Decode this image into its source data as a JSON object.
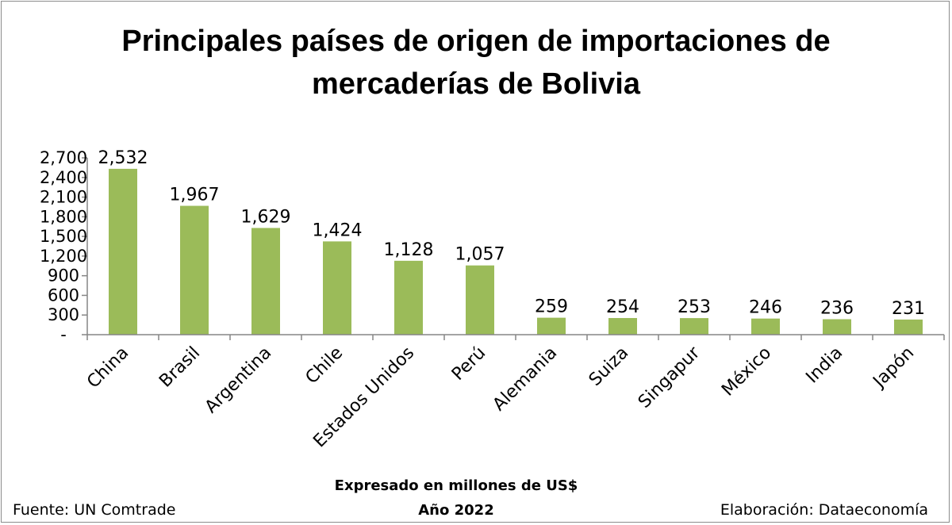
{
  "chart_data": {
    "type": "bar",
    "title_lines": [
      "Principales países de origen de importaciones de",
      "mercaderías de Bolivia"
    ],
    "categories": [
      "China",
      "Brasil",
      "Argentina",
      "Chile",
      "Estados Unidos",
      "Perú",
      "Alemania",
      "Suiza",
      "Singapur",
      "México",
      "India",
      "Japón"
    ],
    "values": [
      2532,
      1967,
      1629,
      1424,
      1128,
      1057,
      259,
      254,
      253,
      246,
      236,
      231
    ],
    "value_labels": [
      "2,532",
      "1,967",
      "1,629",
      "1,424",
      "1,128",
      "1,057",
      "259",
      "254",
      "253",
      "246",
      "236",
      "231"
    ],
    "ylim": [
      0,
      2700
    ],
    "y_ticks": [
      0,
      300,
      600,
      900,
      1200,
      1500,
      1800,
      2100,
      2400,
      2700
    ],
    "y_tick_labels": [
      "-",
      "300",
      "600",
      "900",
      "1,200",
      "1,500",
      "1,800",
      "2,100",
      "2,400",
      "2,700"
    ],
    "xlabel": "",
    "ylabel": "",
    "grid": false,
    "legend": "none",
    "bar_color": "#9bbb59",
    "axis_color": "#868686",
    "subtitle_lines": [
      "Expresado en millones de US$",
      "Año 2022"
    ],
    "source_text": "Fuente: UN Comtrade",
    "credit_text": "Elaboración: Dataeconomía"
  }
}
